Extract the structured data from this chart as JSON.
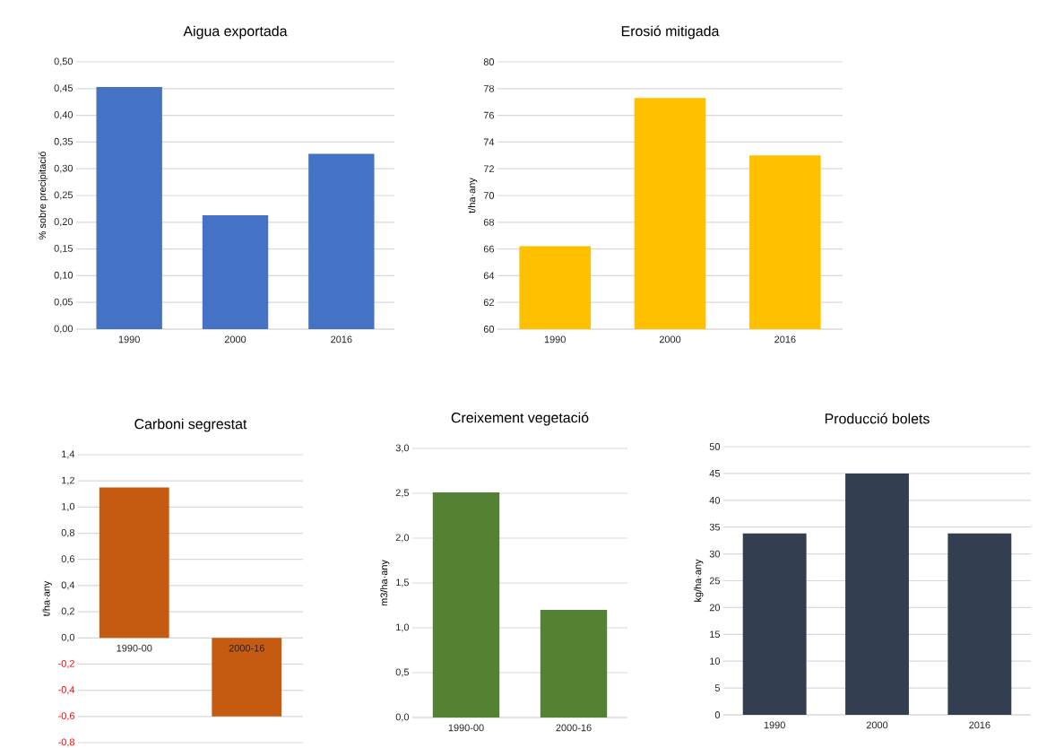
{
  "chart_data": [
    {
      "type": "bar",
      "title": "Aigua exportada",
      "ylabel": "% sobre precipitació",
      "categories": [
        "1990",
        "2000",
        "2016"
      ],
      "values": [
        0.453,
        0.213,
        0.328
      ],
      "color": "#4472c4",
      "ylim": [
        0,
        0.5
      ],
      "yticks": [
        {
          "value": 0,
          "label": "0,00"
        },
        {
          "value": 0.05,
          "label": "0,05"
        },
        {
          "value": 0.1,
          "label": "0,10"
        },
        {
          "value": 0.15,
          "label": "0,15"
        },
        {
          "value": 0.2,
          "label": "0,20"
        },
        {
          "value": 0.25,
          "label": "0,25"
        },
        {
          "value": 0.3,
          "label": "0,30"
        },
        {
          "value": 0.35,
          "label": "0,35"
        },
        {
          "value": 0.4,
          "label": "0,40"
        },
        {
          "value": 0.45,
          "label": "0,45"
        },
        {
          "value": 0.5,
          "label": "0,50"
        }
      ],
      "grid": "y"
    },
    {
      "type": "bar",
      "title": "Erosió mitigada",
      "ylabel": "t/ha·any",
      "categories": [
        "1990",
        "2000",
        "2016"
      ],
      "values": [
        66.2,
        77.3,
        73.0
      ],
      "color": "#ffc000",
      "ylim": [
        60,
        80
      ],
      "yticks": [
        60,
        62,
        64,
        66,
        68,
        70,
        72,
        74,
        76,
        78,
        80
      ],
      "grid": "y"
    },
    {
      "type": "bar",
      "title": "Carboni segrestat",
      "ylabel": "t/ha·any",
      "categories": [
        "1990-00",
        "2000-16"
      ],
      "values": [
        1.15,
        -0.6
      ],
      "color": "#c55a11",
      "ylim": [
        -0.8,
        1.4
      ],
      "yticks": [
        {
          "value": -0.8,
          "label": "-0,8"
        },
        {
          "value": -0.6,
          "label": "-0,6"
        },
        {
          "value": -0.4,
          "label": "-0,4"
        },
        {
          "value": -0.2,
          "label": "-0,2"
        },
        {
          "value": 0,
          "label": "0,0"
        },
        {
          "value": 0.2,
          "label": "0,2"
        },
        {
          "value": 0.4,
          "label": "0,4"
        },
        {
          "value": 0.6,
          "label": "0,6"
        },
        {
          "value": 0.8,
          "label": "0,8"
        },
        {
          "value": 1.0,
          "label": "1,0"
        },
        {
          "value": 1.2,
          "label": "1,2"
        },
        {
          "value": 1.4,
          "label": "1,4"
        }
      ],
      "grid": "y"
    },
    {
      "type": "bar",
      "title": "Creixement vegetació",
      "ylabel": "m3/ha·any",
      "categories": [
        "1990-00",
        "2000-16"
      ],
      "values": [
        2.51,
        1.2
      ],
      "color": "#548235",
      "ylim": [
        0,
        3
      ],
      "yticks": [
        {
          "value": 0,
          "label": "0,0"
        },
        {
          "value": 0.5,
          "label": "0,5"
        },
        {
          "value": 1.0,
          "label": "1,0"
        },
        {
          "value": 1.5,
          "label": "1,5"
        },
        {
          "value": 2.0,
          "label": "2,0"
        },
        {
          "value": 2.5,
          "label": "2,5"
        },
        {
          "value": 3.0,
          "label": "3,0"
        }
      ],
      "grid": "y"
    },
    {
      "type": "bar",
      "title": "Producció bolets",
      "ylabel": "kg/ha·any",
      "categories": [
        "1990",
        "2000",
        "2016"
      ],
      "values": [
        33.8,
        45.0,
        33.8
      ],
      "color": "#333f50",
      "ylim": [
        0,
        50
      ],
      "yticks": [
        0,
        5,
        10,
        15,
        20,
        25,
        30,
        35,
        40,
        45,
        50
      ],
      "grid": "y"
    }
  ]
}
